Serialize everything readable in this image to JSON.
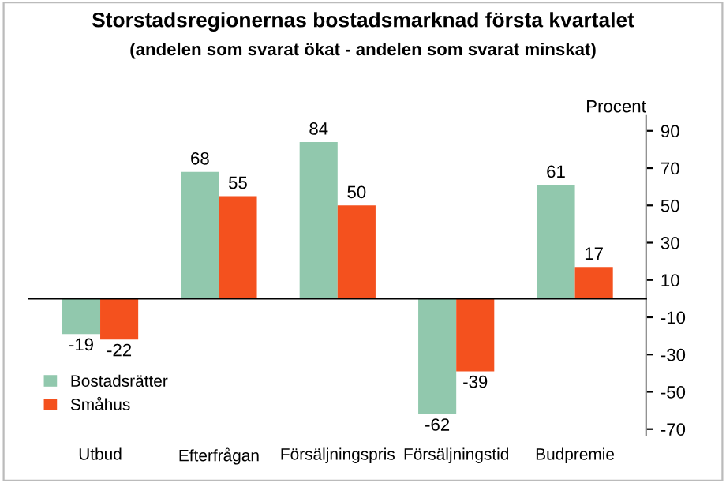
{
  "chart_data": {
    "type": "bar",
    "title": "Storstadsregionernas bostadsmarknad första kvartalet",
    "subtitle": "(andelen som svarat ökat - andelen som svarat minskat)",
    "ylabel": "Procent",
    "categories": [
      "Utbud",
      "Efterfrågan",
      "Försäljningspris",
      "Försäljningstid",
      "Budpremie"
    ],
    "series": [
      {
        "name": "Bostadsrätter",
        "color": "#91c8ad",
        "values": [
          -19,
          68,
          84,
          -62,
          61
        ]
      },
      {
        "name": "Småhus",
        "color": "#f4511e",
        "values": [
          -22,
          55,
          50,
          -39,
          17
        ]
      }
    ],
    "ylim": [
      -73,
      98
    ],
    "yticks": [
      -70,
      -50,
      -30,
      -10,
      10,
      30,
      50,
      70,
      90
    ],
    "data_labels": true,
    "grid": false,
    "legend": "bottom left"
  }
}
